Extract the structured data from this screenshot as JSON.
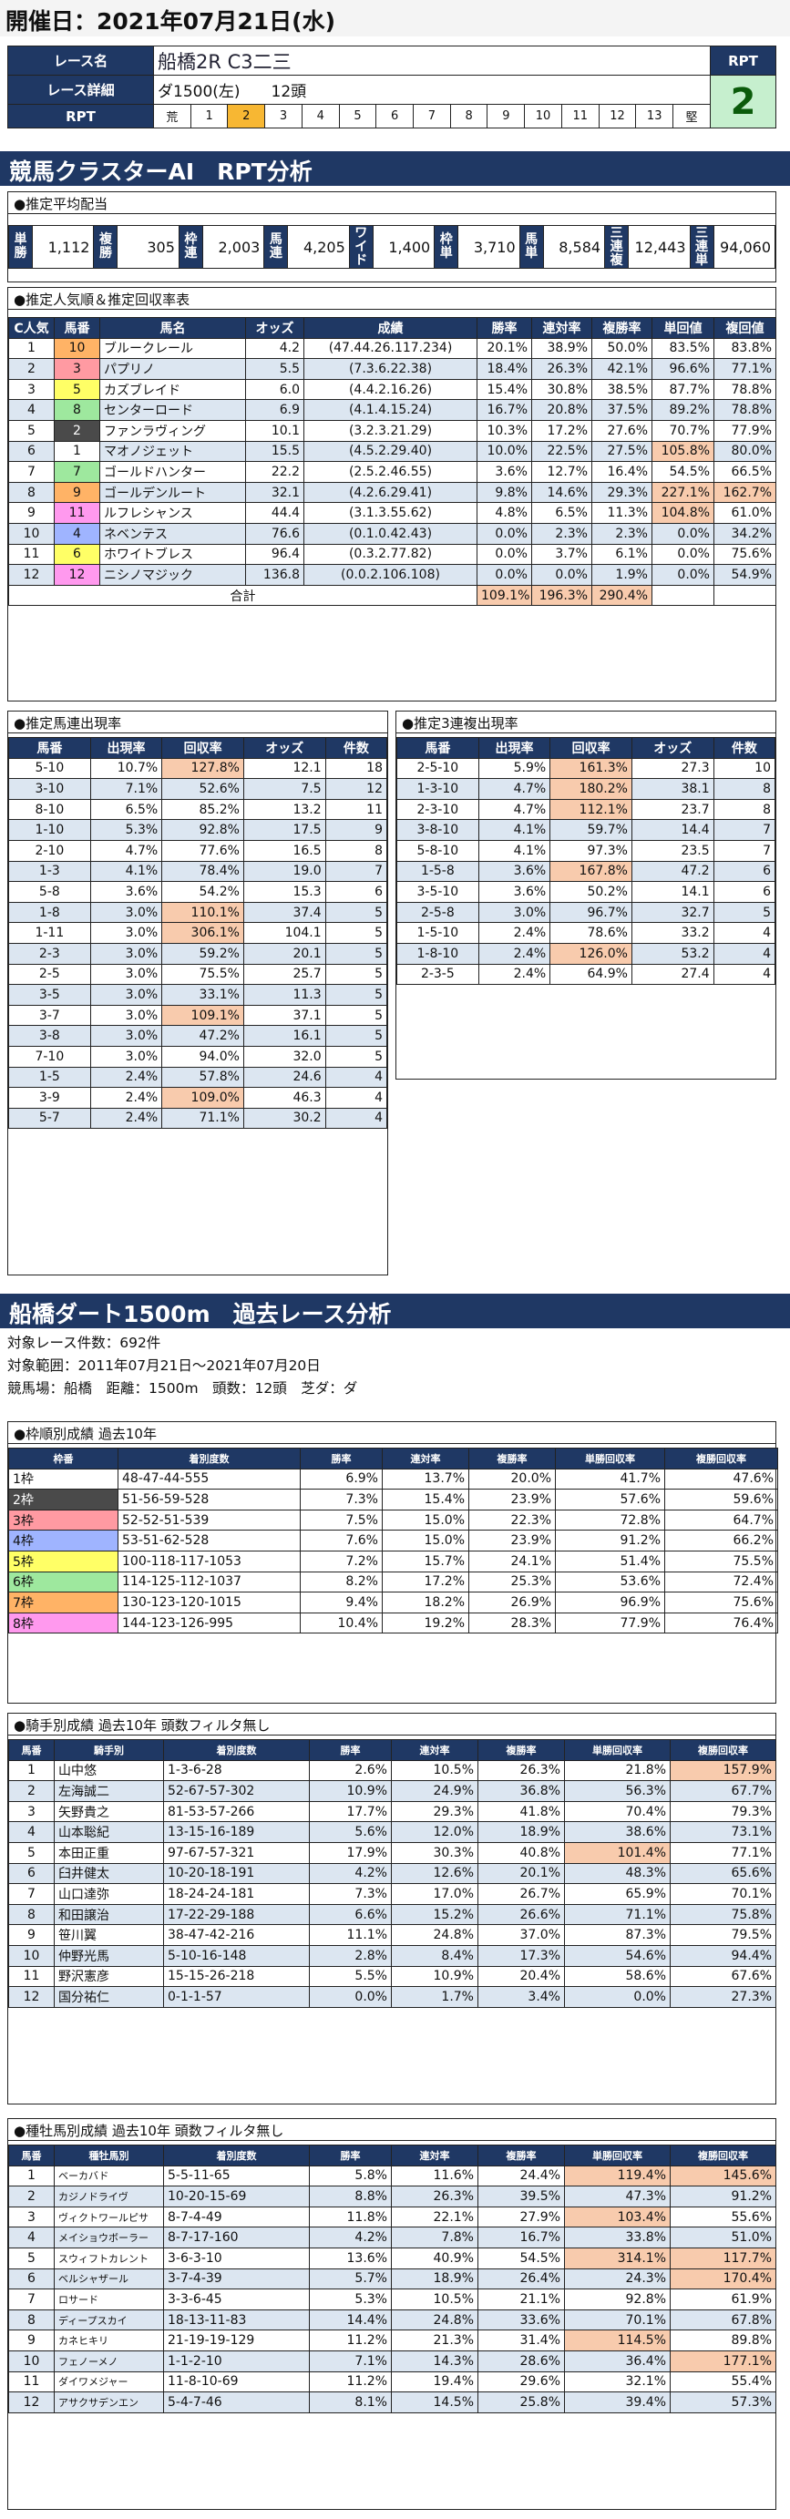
{
  "header": {
    "title": "開催日：2021年07月21日(水)"
  },
  "race": {
    "name_label": "レース名",
    "name": "船橋2R C3二三",
    "detail_label": "レース詳細",
    "course": "ダ1500(左)",
    "heads": "12頭",
    "rpt_label": "RPT",
    "rpt_head": "RPT",
    "rpt_value": "2",
    "scale": [
      "荒",
      "1",
      "2",
      "3",
      "4",
      "5",
      "6",
      "7",
      "8",
      "9",
      "10",
      "11",
      "12",
      "13",
      "堅"
    ]
  },
  "ai_title": "競馬クラスターAI　RPT分析",
  "avg": {
    "title": "●推定平均配当",
    "items": [
      {
        "k": "単勝",
        "v": "1,112"
      },
      {
        "k": "複勝",
        "v": "305"
      },
      {
        "k": "枠連",
        "v": "2,003"
      },
      {
        "k": "馬連",
        "v": "4,205"
      },
      {
        "k": "ワイド",
        "v": "1,400"
      },
      {
        "k": "枠単",
        "v": "3,710"
      },
      {
        "k": "馬単",
        "v": "8,584"
      },
      {
        "k": "三連複",
        "v": "12,443"
      },
      {
        "k": "三連単",
        "v": "94,060"
      }
    ]
  },
  "pop": {
    "title": "●推定人気順＆推定回収率表",
    "headers": [
      "C人気",
      "馬番",
      "馬名",
      "オッズ",
      "成績",
      "勝率",
      "連対率",
      "複勝率",
      "単回値",
      "複回値"
    ],
    "rows": [
      [
        "1",
        "10",
        "ブルークレール",
        "4.2",
        "(47.44.26.117.234)",
        "20.1%",
        "38.9%",
        "50.0%",
        "83.5%",
        "83.8%"
      ],
      [
        "2",
        "3",
        "パプリノ",
        "5.5",
        "(7.3.6.22.38)",
        "18.4%",
        "26.3%",
        "42.1%",
        "96.6%",
        "77.1%"
      ],
      [
        "3",
        "5",
        "カズブレイド",
        "6.0",
        "(4.4.2.16.26)",
        "15.4%",
        "30.8%",
        "38.5%",
        "87.7%",
        "78.8%"
      ],
      [
        "4",
        "8",
        "センターロード",
        "6.9",
        "(4.1.4.15.24)",
        "16.7%",
        "20.8%",
        "37.5%",
        "89.2%",
        "78.8%"
      ],
      [
        "5",
        "2",
        "ファンラヴィング",
        "10.1",
        "(3.2.3.21.29)",
        "10.3%",
        "17.2%",
        "27.6%",
        "70.7%",
        "77.9%"
      ],
      [
        "6",
        "1",
        "マオノジェット",
        "15.5",
        "(4.5.2.29.40)",
        "10.0%",
        "22.5%",
        "27.5%",
        "105.8%",
        "80.0%"
      ],
      [
        "7",
        "7",
        "ゴールドハンター",
        "22.2",
        "(2.5.2.46.55)",
        "3.6%",
        "12.7%",
        "16.4%",
        "54.5%",
        "66.5%"
      ],
      [
        "8",
        "9",
        "ゴールデンルート",
        "32.1",
        "(4.2.6.29.41)",
        "9.8%",
        "14.6%",
        "29.3%",
        "227.1%",
        "162.7%"
      ],
      [
        "9",
        "11",
        "ルフレシャンス",
        "44.4",
        "(3.1.3.55.62)",
        "4.8%",
        "6.5%",
        "11.3%",
        "104.8%",
        "61.0%"
      ],
      [
        "10",
        "4",
        "ネベンテス",
        "76.6",
        "(0.1.0.42.43)",
        "0.0%",
        "2.3%",
        "2.3%",
        "0.0%",
        "34.2%"
      ],
      [
        "11",
        "6",
        "ホワイトブレス",
        "96.4",
        "(0.3.2.77.82)",
        "0.0%",
        "3.7%",
        "6.1%",
        "0.0%",
        "75.6%"
      ],
      [
        "12",
        "12",
        "ニシノマジック",
        "136.8",
        "(0.0.2.106.108)",
        "0.0%",
        "0.0%",
        "1.9%",
        "0.0%",
        "54.9%"
      ]
    ],
    "total_label": "合計",
    "total": [
      "109.1%",
      "196.3%",
      "290.4%"
    ]
  },
  "umaren": {
    "title": "●推定馬連出現率",
    "headers": [
      "馬番",
      "出現率",
      "回収率",
      "オッズ",
      "件数"
    ],
    "rows": [
      [
        "5-10",
        "10.7%",
        "127.8%",
        "12.1",
        "18"
      ],
      [
        "3-10",
        "7.1%",
        "52.6%",
        "7.5",
        "12"
      ],
      [
        "8-10",
        "6.5%",
        "85.2%",
        "13.2",
        "11"
      ],
      [
        "1-10",
        "5.3%",
        "92.8%",
        "17.5",
        "9"
      ],
      [
        "2-10",
        "4.7%",
        "77.6%",
        "16.5",
        "8"
      ],
      [
        "1-3",
        "4.1%",
        "78.4%",
        "19.0",
        "7"
      ],
      [
        "5-8",
        "3.6%",
        "54.2%",
        "15.3",
        "6"
      ],
      [
        "1-8",
        "3.0%",
        "110.1%",
        "37.4",
        "5"
      ],
      [
        "1-11",
        "3.0%",
        "306.1%",
        "104.1",
        "5"
      ],
      [
        "2-3",
        "3.0%",
        "59.2%",
        "20.1",
        "5"
      ],
      [
        "2-5",
        "3.0%",
        "75.5%",
        "25.7",
        "5"
      ],
      [
        "3-5",
        "3.0%",
        "33.1%",
        "11.3",
        "5"
      ],
      [
        "3-7",
        "3.0%",
        "109.1%",
        "37.1",
        "5"
      ],
      [
        "3-8",
        "3.0%",
        "47.2%",
        "16.1",
        "5"
      ],
      [
        "7-10",
        "3.0%",
        "94.0%",
        "32.0",
        "5"
      ],
      [
        "1-5",
        "2.4%",
        "57.8%",
        "24.6",
        "4"
      ],
      [
        "3-9",
        "2.4%",
        "109.0%",
        "46.3",
        "4"
      ],
      [
        "5-7",
        "2.4%",
        "71.1%",
        "30.2",
        "4"
      ]
    ]
  },
  "sanfuku": {
    "title": "●推定3連複出現率",
    "headers": [
      "馬番",
      "出現率",
      "回収率",
      "オッズ",
      "件数"
    ],
    "rows": [
      [
        "2-5-10",
        "5.9%",
        "161.3%",
        "27.3",
        "10"
      ],
      [
        "1-3-10",
        "4.7%",
        "180.2%",
        "38.1",
        "8"
      ],
      [
        "2-3-10",
        "4.7%",
        "112.1%",
        "23.7",
        "8"
      ],
      [
        "3-8-10",
        "4.1%",
        "59.7%",
        "14.4",
        "7"
      ],
      [
        "5-8-10",
        "4.1%",
        "97.3%",
        "23.5",
        "7"
      ],
      [
        "1-5-8",
        "3.6%",
        "167.8%",
        "47.2",
        "6"
      ],
      [
        "3-5-10",
        "3.6%",
        "50.2%",
        "14.1",
        "6"
      ],
      [
        "2-5-8",
        "3.0%",
        "96.7%",
        "32.7",
        "5"
      ],
      [
        "1-5-10",
        "2.4%",
        "78.6%",
        "33.2",
        "4"
      ],
      [
        "1-8-10",
        "2.4%",
        "126.0%",
        "53.2",
        "4"
      ],
      [
        "2-3-5",
        "2.4%",
        "64.9%",
        "27.4",
        "4"
      ]
    ]
  },
  "past": {
    "title": "船橋ダート1500m　過去レース分析",
    "count": "対象レース件数：692件",
    "range": "対象範囲：2011年07月21日～2021年07月20日",
    "cond": "競馬場：船橋　距離：1500m　頭数：12頭　芝ダ：ダ"
  },
  "waku": {
    "title": "●枠順別成績 過去10年",
    "headers": [
      "枠番",
      "着別度数",
      "勝率",
      "連対率",
      "複勝率",
      "単勝回収率",
      "複勝回収率"
    ],
    "rows": [
      [
        "1枠",
        "48-47-44-555",
        "6.9%",
        "13.7%",
        "20.0%",
        "41.7%",
        "47.6%"
      ],
      [
        "2枠",
        "51-56-59-528",
        "7.3%",
        "15.4%",
        "23.9%",
        "57.6%",
        "59.6%"
      ],
      [
        "3枠",
        "52-52-51-539",
        "7.5%",
        "15.0%",
        "22.3%",
        "72.8%",
        "64.7%"
      ],
      [
        "4枠",
        "53-51-62-528",
        "7.6%",
        "15.0%",
        "23.9%",
        "91.2%",
        "66.2%"
      ],
      [
        "5枠",
        "100-118-117-1053",
        "7.2%",
        "15.7%",
        "24.1%",
        "51.4%",
        "75.5%"
      ],
      [
        "6枠",
        "114-125-112-1037",
        "8.2%",
        "17.2%",
        "25.3%",
        "53.6%",
        "72.4%"
      ],
      [
        "7枠",
        "130-123-120-1015",
        "9.4%",
        "18.2%",
        "26.9%",
        "96.9%",
        "75.6%"
      ],
      [
        "8枠",
        "144-123-126-995",
        "10.4%",
        "19.2%",
        "28.3%",
        "77.9%",
        "76.4%"
      ]
    ]
  },
  "jockey": {
    "title": "●騎手別成績 過去10年 頭数フィルタ無し",
    "headers": [
      "馬番",
      "騎手別",
      "着別度数",
      "勝率",
      "連対率",
      "複勝率",
      "単勝回収率",
      "複勝回収率"
    ],
    "rows": [
      [
        "1",
        "山中悠",
        "1-3-6-28",
        "2.6%",
        "10.5%",
        "26.3%",
        "21.8%",
        "157.9%"
      ],
      [
        "2",
        "左海誠二",
        "52-67-57-302",
        "10.9%",
        "24.9%",
        "36.8%",
        "56.3%",
        "67.7%"
      ],
      [
        "3",
        "矢野貴之",
        "81-53-57-266",
        "17.7%",
        "29.3%",
        "41.8%",
        "70.4%",
        "79.3%"
      ],
      [
        "4",
        "山本聡紀",
        "13-15-16-189",
        "5.6%",
        "12.0%",
        "18.9%",
        "38.6%",
        "73.1%"
      ],
      [
        "5",
        "本田正重",
        "97-67-57-321",
        "17.9%",
        "30.3%",
        "40.8%",
        "101.4%",
        "77.1%"
      ],
      [
        "6",
        "臼井健太",
        "10-20-18-191",
        "4.2%",
        "12.6%",
        "20.1%",
        "48.3%",
        "65.6%"
      ],
      [
        "7",
        "山口達弥",
        "18-24-24-181",
        "7.3%",
        "17.0%",
        "26.7%",
        "65.9%",
        "70.1%"
      ],
      [
        "8",
        "和田譲治",
        "17-22-29-188",
        "6.6%",
        "15.2%",
        "26.6%",
        "71.1%",
        "75.8%"
      ],
      [
        "9",
        "笹川翼",
        "38-47-42-216",
        "11.1%",
        "24.8%",
        "37.0%",
        "87.3%",
        "79.5%"
      ],
      [
        "10",
        "仲野光馬",
        "5-10-16-148",
        "2.8%",
        "8.4%",
        "17.3%",
        "54.6%",
        "94.4%"
      ],
      [
        "11",
        "野沢憲彦",
        "15-15-26-218",
        "5.5%",
        "10.9%",
        "20.4%",
        "58.6%",
        "67.6%"
      ],
      [
        "12",
        "国分祐仁",
        "0-1-1-57",
        "0.0%",
        "1.7%",
        "3.4%",
        "0.0%",
        "27.3%"
      ]
    ]
  },
  "sire": {
    "title": "●種牡馬別成績 過去10年 頭数フィルタ無し",
    "headers": [
      "馬番",
      "種牡馬別",
      "着別度数",
      "勝率",
      "連対率",
      "複勝率",
      "単勝回収率",
      "複勝回収率"
    ],
    "rows": [
      [
        "1",
        "ベーカバド",
        "5-5-11-65",
        "5.8%",
        "11.6%",
        "24.4%",
        "119.4%",
        "145.6%"
      ],
      [
        "2",
        "カジノドライヴ",
        "10-20-15-69",
        "8.8%",
        "26.3%",
        "39.5%",
        "47.3%",
        "91.2%"
      ],
      [
        "3",
        "ヴィクトワールピサ",
        "8-7-4-49",
        "11.8%",
        "22.1%",
        "27.9%",
        "103.4%",
        "55.6%"
      ],
      [
        "4",
        "メイショウボーラー",
        "8-7-17-160",
        "4.2%",
        "7.8%",
        "16.7%",
        "33.8%",
        "51.0%"
      ],
      [
        "5",
        "スウィフトカレント",
        "3-6-3-10",
        "13.6%",
        "40.9%",
        "54.5%",
        "314.1%",
        "117.7%"
      ],
      [
        "6",
        "ベルシャザール",
        "3-7-4-39",
        "5.7%",
        "18.9%",
        "26.4%",
        "24.3%",
        "170.4%"
      ],
      [
        "7",
        "ロサード",
        "3-3-6-45",
        "5.3%",
        "10.5%",
        "21.1%",
        "92.8%",
        "61.9%"
      ],
      [
        "8",
        "ディープスカイ",
        "18-13-11-83",
        "14.4%",
        "24.8%",
        "33.6%",
        "70.1%",
        "67.8%"
      ],
      [
        "9",
        "カネヒキリ",
        "21-19-19-129",
        "11.2%",
        "21.3%",
        "31.4%",
        "114.5%",
        "89.8%"
      ],
      [
        "10",
        "フェノーメノ",
        "1-1-2-10",
        "7.1%",
        "14.3%",
        "28.6%",
        "36.4%",
        "177.1%"
      ],
      [
        "11",
        "ダイワメジャー",
        "11-8-10-69",
        "11.2%",
        "19.4%",
        "29.6%",
        "32.1%",
        "55.4%"
      ],
      [
        "12",
        "アサクサデンエン",
        "5-4-7-46",
        "8.1%",
        "14.5%",
        "25.8%",
        "39.4%",
        "57.3%"
      ]
    ]
  },
  "colors": {
    "navy": "#1f3864",
    "alt": "#dce6f1",
    "hot": "#f8cbad",
    "gold": "#f7b733",
    "rpt_bg": "#c6efce"
  },
  "waku_colors": [
    "#ffffff",
    "#4a4a4a",
    "#ff9aa2",
    "#9fb4ff",
    "#ffff66",
    "#9ee89e",
    "#ffb366",
    "#ff99ee"
  ],
  "num_map": {
    "1": "#ffffff",
    "2": "#4a4a4a",
    "3": "#ff9aa2",
    "4": "#9fb4ff",
    "5": "#ffff66",
    "6": "#ffff66",
    "7": "#9ee89e",
    "8": "#9ee89e",
    "9": "#ffb366",
    "10": "#ffb366",
    "11": "#ff99ee",
    "12": "#ff99ee"
  }
}
